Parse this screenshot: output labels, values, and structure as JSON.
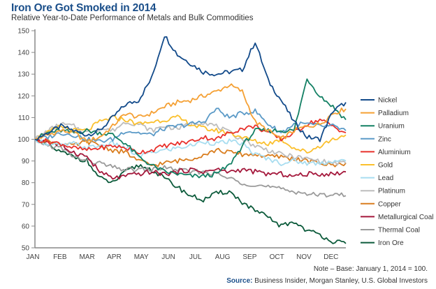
{
  "chart_data": {
    "type": "line",
    "title": "Iron Ore Got Smoked in 2014",
    "subtitle": "Relative Year-to-Date Performance of Metals and Bulk Commodities",
    "xlabel": "",
    "ylabel": "",
    "ylim": [
      50,
      150
    ],
    "yticks": [
      50,
      60,
      70,
      80,
      90,
      100,
      110,
      120,
      130,
      140,
      150
    ],
    "categories": [
      "JAN",
      "FEB",
      "MAR",
      "APR",
      "MAY",
      "JUN",
      "JUL",
      "AUG",
      "SEP",
      "OCT",
      "NOV",
      "DEC"
    ],
    "x_points": "semi-monthly from Jan 1 to Dec 31 (25 points)",
    "grid": false,
    "legend_position": "right",
    "series": [
      {
        "name": "Nickel",
        "color": "#124a8a",
        "values": [
          100,
          103,
          106,
          104,
          102,
          104,
          110,
          116,
          118,
          128,
          148,
          139,
          135,
          131,
          130,
          131,
          132,
          145,
          127,
          118,
          108,
          101,
          100,
          113,
          117
        ]
      },
      {
        "name": "Palladium",
        "color": "#f5a033",
        "values": [
          100,
          102,
          104,
          103,
          99,
          101,
          106,
          112,
          110,
          112,
          115,
          117,
          118,
          120,
          122,
          125,
          122,
          108,
          104,
          100,
          104,
          106,
          107,
          112,
          114
        ]
      },
      {
        "name": "Uranium",
        "color": "#138064",
        "values": [
          100,
          103,
          104,
          103,
          104,
          103,
          102,
          98,
          92,
          88,
          85,
          84,
          83,
          83,
          84,
          88,
          97,
          104,
          104,
          104,
          104,
          128,
          120,
          115,
          109
        ]
      },
      {
        "name": "Zinc",
        "color": "#5b9ac7",
        "values": [
          100,
          101,
          103,
          102,
          100,
          99,
          100,
          104,
          103,
          102,
          105,
          106,
          107,
          108,
          114,
          110,
          112,
          113,
          107,
          103,
          107,
          107,
          106,
          106,
          104
        ]
      },
      {
        "name": "Aluminium",
        "color": "#e8302b",
        "values": [
          100,
          99,
          98,
          96,
          95,
          96,
          97,
          96,
          94,
          95,
          97,
          98,
          99,
          101,
          100,
          103,
          105,
          106,
          103,
          100,
          103,
          107,
          109,
          106,
          103
        ]
      },
      {
        "name": "Gold",
        "color": "#fbc02d",
        "values": [
          100,
          103,
          106,
          104,
          104,
          108,
          110,
          109,
          107,
          108,
          109,
          110,
          107,
          105,
          104,
          103,
          101,
          99,
          98,
          100,
          96,
          94,
          97,
          100,
          102
        ]
      },
      {
        "name": "Lead",
        "color": "#a8ddf0",
        "values": [
          100,
          98,
          97,
          98,
          96,
          97,
          98,
          96,
          92,
          94,
          95,
          96,
          97,
          99,
          98,
          99,
          98,
          93,
          91,
          89,
          90,
          89,
          89,
          90,
          90
        ]
      },
      {
        "name": "Platinum",
        "color": "#bdbdbd",
        "values": [
          100,
          104,
          107,
          106,
          103,
          105,
          104,
          108,
          107,
          104,
          106,
          105,
          107,
          108,
          106,
          103,
          100,
          97,
          95,
          93,
          92,
          91,
          90,
          89,
          89
        ]
      },
      {
        "name": "Copper",
        "color": "#d97d1e",
        "values": [
          100,
          99,
          98,
          97,
          99,
          97,
          95,
          94,
          90,
          88,
          89,
          90,
          91,
          93,
          95,
          94,
          93,
          93,
          92,
          92,
          91,
          90,
          89,
          88,
          89
        ]
      },
      {
        "name": "Metallurgical Coal",
        "color": "#a4173b",
        "values": [
          100,
          99,
          97,
          94,
          92,
          85,
          82,
          83,
          84,
          85,
          84,
          85,
          86,
          85,
          86,
          85,
          86,
          85,
          84,
          84,
          83,
          84,
          84,
          84,
          85
        ]
      },
      {
        "name": "Thermal Coal",
        "color": "#9a9a9a",
        "values": [
          100,
          97,
          96,
          92,
          90,
          89,
          87,
          86,
          86,
          86,
          87,
          86,
          85,
          85,
          84,
          82,
          80,
          79,
          78,
          77,
          76,
          75,
          74,
          75,
          74
        ]
      },
      {
        "name": "Iron Ore",
        "color": "#0b5a3a",
        "values": [
          100,
          97,
          94,
          92,
          90,
          82,
          80,
          85,
          88,
          86,
          82,
          78,
          74,
          72,
          75,
          76,
          71,
          67,
          64,
          60,
          62,
          58,
          56,
          53,
          52
        ]
      }
    ],
    "annotations": []
  },
  "footer": {
    "note": "Note – Base: January 1, 2014 = 100.",
    "source_label": "Source:",
    "source_text": " Business Insider, Morgan Stanley, U.S. Global Investors"
  }
}
